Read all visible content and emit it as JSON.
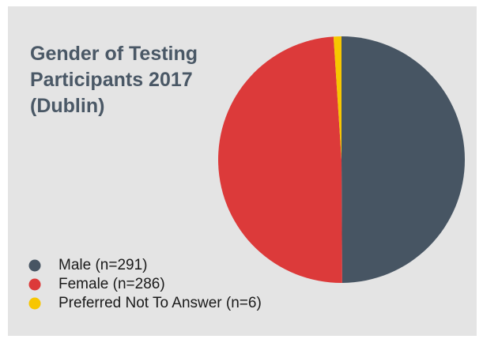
{
  "chart_data": {
    "type": "pie",
    "title": "Gender of Testing Participants 2017 (Dublin)",
    "categories": [
      "Male (n=291)",
      "Female (n=286)",
      "Preferred Not To Answer (n=6)"
    ],
    "values": [
      291,
      286,
      6
    ],
    "colors": [
      "#475563",
      "#dc3a3a",
      "#f7c600"
    ]
  }
}
